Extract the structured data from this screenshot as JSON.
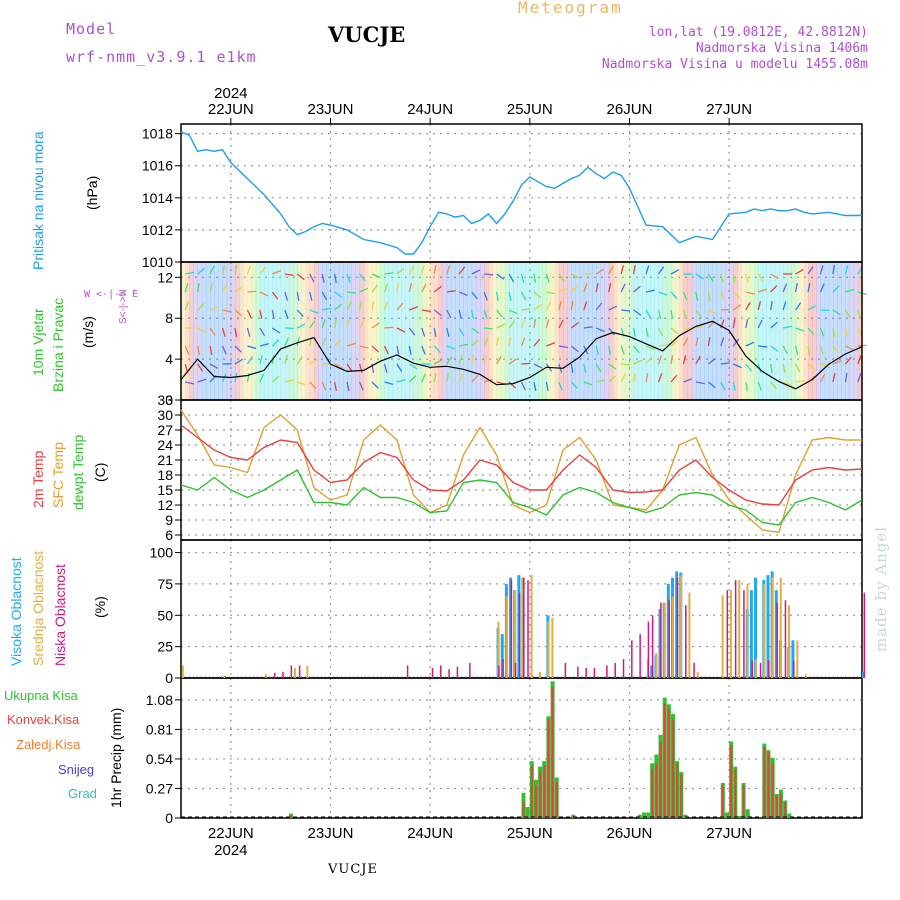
{
  "header": {
    "model_label": "Model",
    "model_run": "wrf-nmm_v3.9.1  e1km",
    "station": "VUCJE",
    "product": "Meteogram",
    "lonlat": "lon,lat (19.0812E, 42.8812N)",
    "elevation": "Nadmorska Visina 1406m",
    "model_elevation": "Nadmorska Visina u modelu 1455.08m",
    "footer_station": "VUCJE",
    "credit": "made by Angel"
  },
  "time_axis": {
    "year": "2024",
    "days": [
      "22JUN",
      "23JUN",
      "24JUN",
      "25JUN",
      "26JUN",
      "27JUN"
    ]
  },
  "colors": {
    "pressure": "#1e9ee8",
    "temp2m": "#e84040",
    "tempsfc": "#e0a030",
    "dewpt": "#30c030",
    "cloud_high": "#20a8f0",
    "cloud_mid": "#e0b040",
    "cloud_low": "#d01880",
    "precip_total": "#30c030",
    "precip_conv": "#e84040",
    "precip_frozen": "#f08030",
    "snow": "#4040e0",
    "graupel": "#30c0c0",
    "wind_label": "#30c030",
    "wind_dir": "#b050d0",
    "grid": "#999999"
  },
  "labels": {
    "pressure": {
      "name": "Pritisak na nivou mora",
      "unit": "(hPa)"
    },
    "wind": {
      "name1": "10m Vjetar",
      "name2": "Brzina i Pravac",
      "unit": "(m/s)",
      "dir_we": "W <-|-> E",
      "dir_sn": "S<-|->N"
    },
    "temp": {
      "l1": "2m Temp",
      "l2": "SFC Temp",
      "l3": "dewpt Temp",
      "unit": "(C)"
    },
    "cloud": {
      "l1": "Visoka Oblacnost",
      "l2": "Srednja Oblacnost",
      "l3": "Niska Oblacnost",
      "unit": "(%)"
    },
    "precip": {
      "l1": "Ukupna Kisa",
      "l2": "Konvek.Kisa",
      "l3": "Zaledj.Kisa",
      "l4": "Snijeg",
      "l5": "Grad",
      "unit": "1hr Precip (mm)"
    }
  },
  "chart_data": [
    {
      "type": "line",
      "name": "pressure",
      "x_hours": [
        0,
        2,
        4,
        6,
        8,
        10,
        12,
        16,
        20,
        24,
        26,
        28,
        30,
        32,
        34,
        36,
        40,
        44,
        48,
        52,
        54,
        56,
        58,
        60,
        62,
        64,
        66,
        68,
        70,
        72,
        74,
        76,
        78,
        80,
        82,
        84,
        86,
        88,
        90,
        92,
        94,
        96,
        98,
        100,
        102,
        104,
        106,
        108,
        112,
        116,
        120,
        124,
        128,
        132,
        136,
        138,
        140,
        142,
        144,
        146,
        148,
        150,
        152,
        156,
        160,
        164
      ],
      "values": [
        1018.1,
        1017.9,
        1016.9,
        1017.0,
        1016.9,
        1017.0,
        1016.2,
        1015.2,
        1014.2,
        1013.0,
        1012.2,
        1011.7,
        1011.9,
        1012.2,
        1012.4,
        1012.3,
        1012.0,
        1011.4,
        1011.2,
        1010.9,
        1010.5,
        1010.5,
        1011.2,
        1012.2,
        1013.1,
        1013.0,
        1012.8,
        1012.9,
        1012.4,
        1012.6,
        1013.0,
        1012.4,
        1013.0,
        1013.8,
        1014.8,
        1015.3,
        1015.0,
        1014.7,
        1014.6,
        1014.9,
        1015.2,
        1015.4,
        1015.9,
        1015.5,
        1015.2,
        1015.6,
        1015.4,
        1014.6,
        1012.3,
        1012.2,
        1011.2,
        1011.6,
        1011.4,
        1013.0,
        1013.1,
        1013.3,
        1013.2,
        1013.3,
        1013.2,
        1013.2,
        1013.3,
        1013.1,
        1013.0,
        1013.1,
        1012.9,
        1012.9
      ],
      "ylim": [
        1010,
        1018.6
      ],
      "yticks": [
        1010,
        1012,
        1014,
        1016,
        1018
      ]
    },
    {
      "type": "line",
      "name": "wind_speed",
      "x_hours": [
        0,
        4,
        8,
        12,
        16,
        20,
        24,
        28,
        32,
        36,
        40,
        44,
        48,
        52,
        56,
        60,
        64,
        68,
        72,
        76,
        80,
        84,
        88,
        92,
        96,
        100,
        104,
        108,
        112,
        116,
        120,
        124,
        128,
        132,
        136,
        140,
        144,
        148,
        152,
        156,
        160,
        164
      ],
      "series": [
        {
          "name": "Brzina",
          "values": [
            2.0,
            4.0,
            2.3,
            2.2,
            2.4,
            2.9,
            5.0,
            5.6,
            6.1,
            3.5,
            2.8,
            2.9,
            3.8,
            4.4,
            3.6,
            3.2,
            3.3,
            3.0,
            2.5,
            1.5,
            1.6,
            2.2,
            3.2,
            3.1,
            4.2,
            6.0,
            6.6,
            6.2,
            5.5,
            4.8,
            6.3,
            7.2,
            7.7,
            6.8,
            4.3,
            2.8,
            1.8,
            1.1,
            2.0,
            3.5,
            4.5,
            5.2
          ]
        }
      ],
      "ylim": [
        0,
        13.5
      ],
      "yticks": [
        0,
        4,
        8,
        12
      ]
    },
    {
      "type": "line",
      "name": "temperature",
      "x_hours": [
        0,
        4,
        8,
        12,
        16,
        20,
        24,
        28,
        32,
        36,
        40,
        44,
        48,
        52,
        56,
        60,
        64,
        68,
        72,
        76,
        80,
        84,
        88,
        92,
        96,
        100,
        104,
        108,
        112,
        116,
        120,
        124,
        128,
        132,
        136,
        140,
        144,
        148,
        152,
        156,
        160,
        164
      ],
      "series": [
        {
          "name": "2m Temp",
          "values": [
            28.0,
            25.5,
            23.0,
            21.5,
            21.0,
            23.5,
            25.0,
            24.5,
            19.0,
            16.5,
            17.0,
            20.5,
            22.5,
            21.5,
            17.0,
            15.0,
            14.8,
            17.0,
            21.0,
            20.0,
            16.5,
            15.0,
            15.0,
            19.0,
            22.0,
            19.5,
            15.0,
            14.5,
            14.6,
            15.0,
            19.0,
            21.0,
            17.5,
            15.0,
            13.0,
            12.2,
            12.0,
            17.0,
            19.0,
            19.5,
            19.0,
            19.2
          ]
        },
        {
          "name": "SFC Temp",
          "values": [
            31.0,
            26.0,
            20.0,
            19.5,
            18.5,
            27.5,
            30.0,
            27.0,
            15.5,
            13.0,
            14.0,
            25.0,
            28.0,
            25.0,
            14.0,
            10.5,
            12.0,
            22.0,
            27.5,
            22.0,
            12.0,
            10.5,
            12.0,
            23.0,
            25.5,
            21.0,
            12.0,
            11.5,
            11.0,
            15.0,
            24.0,
            25.5,
            18.0,
            13.0,
            10.0,
            7.0,
            6.5,
            18.0,
            25.0,
            25.5,
            25.0,
            25.0
          ]
        },
        {
          "name": "dewpt Temp",
          "values": [
            16.0,
            15.0,
            17.5,
            15.0,
            13.5,
            15.0,
            17.0,
            19.0,
            12.5,
            12.5,
            12.0,
            15.5,
            13.5,
            13.5,
            12.5,
            10.5,
            10.8,
            16.5,
            17.0,
            16.5,
            12.5,
            11.5,
            10.0,
            14.0,
            15.5,
            14.5,
            12.5,
            11.5,
            10.5,
            11.5,
            14.0,
            14.5,
            14.0,
            12.0,
            11.0,
            8.5,
            8.0,
            12.5,
            13.5,
            12.5,
            11.0,
            13.0
          ]
        }
      ],
      "ylim": [
        5,
        33
      ],
      "yticks": [
        6,
        9,
        12,
        15,
        18,
        21,
        24,
        27,
        30,
        33
      ]
    },
    {
      "type": "bar",
      "name": "cloud_cover",
      "series": [
        {
          "name": "Visoka Oblacnost",
          "x_hours": [
            76,
            77,
            78,
            79,
            80,
            81,
            82,
            88,
            113,
            114,
            115,
            116,
            117,
            118,
            119,
            120,
            136,
            137,
            138,
            140,
            141,
            142,
            143,
            144,
            146,
            147,
            164
          ],
          "values": [
            40,
            35,
            75,
            80,
            70,
            82,
            80,
            50,
            10,
            18,
            55,
            60,
            75,
            80,
            85,
            84,
            55,
            70,
            80,
            78,
            82,
            85,
            70,
            30,
            25,
            30,
            5
          ]
        },
        {
          "name": "Srednja Oblacnost",
          "x_hours": [
            0,
            10,
            20,
            27,
            30,
            76,
            78,
            80,
            82,
            84,
            86,
            88,
            89,
            112,
            114,
            116,
            118,
            120,
            122,
            124,
            130,
            132,
            134,
            136,
            138,
            140,
            142,
            144,
            146,
            148,
            150
          ],
          "values": [
            10,
            2,
            3,
            8,
            10,
            45,
            65,
            70,
            80,
            82,
            5,
            45,
            48,
            15,
            20,
            60,
            65,
            82,
            68,
            5,
            66,
            70,
            78,
            75,
            15,
            75,
            80,
            80,
            58,
            30,
            3
          ]
        },
        {
          "name": "Niska Oblacnost",
          "x_hours": [
            22,
            24,
            26,
            28,
            54,
            60,
            62,
            64,
            66,
            69,
            76,
            77,
            79,
            80,
            81,
            82,
            83,
            92,
            95,
            97,
            99,
            102,
            104,
            106,
            108,
            110,
            112,
            113,
            115,
            117,
            119,
            121,
            123,
            131,
            133,
            135,
            137,
            139,
            141,
            143,
            145,
            147,
            164
          ],
          "values": [
            4,
            5,
            10,
            10,
            10,
            8,
            10,
            7,
            9,
            12,
            10,
            15,
            78,
            12,
            68,
            80,
            78,
            12,
            9,
            8,
            8,
            10,
            12,
            15,
            30,
            35,
            45,
            50,
            60,
            62,
            80,
            58,
            12,
            70,
            78,
            70,
            14,
            12,
            14,
            60,
            62,
            14,
            68
          ]
        }
      ],
      "ylim": [
        0,
        110
      ],
      "yticks": [
        0,
        25,
        50,
        75,
        100
      ]
    },
    {
      "type": "bar",
      "name": "precipitation",
      "series": [
        {
          "name": "Ukupna Kisa",
          "x_hours": [
            26,
            82,
            83,
            84,
            85,
            86,
            87,
            88,
            89,
            90,
            94,
            110,
            111,
            112,
            113,
            114,
            115,
            116,
            117,
            118,
            119,
            120,
            121,
            130,
            131,
            132,
            133,
            134,
            135,
            136,
            140,
            141,
            142,
            143,
            144,
            145,
            146
          ],
          "values": [
            0.04,
            0.23,
            0.1,
            0.52,
            0.35,
            0.47,
            0.52,
            0.93,
            1.25,
            0.37,
            0.03,
            0.03,
            0.05,
            0.05,
            0.5,
            0.58,
            0.76,
            1.1,
            1.04,
            0.95,
            0.52,
            0.42,
            0.03,
            0.32,
            0.05,
            0.7,
            0.47,
            0.02,
            0.32,
            0.08,
            0.68,
            0.62,
            0.55,
            0.22,
            0.26,
            0.16,
            0.04
          ]
        },
        {
          "name": "Konvek.Kisa",
          "x_hours": [
            26,
            82,
            84,
            85,
            86,
            87,
            88,
            89,
            90,
            94,
            113,
            114,
            115,
            116,
            117,
            118,
            119,
            120,
            130,
            132,
            133,
            135,
            140,
            141,
            142,
            143,
            144,
            145
          ],
          "values": [
            0.03,
            0.15,
            0.48,
            0.3,
            0.42,
            0.48,
            0.9,
            1.2,
            0.33,
            0.02,
            0.45,
            0.5,
            0.7,
            1.05,
            1.0,
            0.9,
            0.5,
            0.4,
            0.3,
            0.66,
            0.44,
            0.3,
            0.65,
            0.6,
            0.5,
            0.2,
            0.22,
            0.14
          ]
        }
      ],
      "ylim": [
        0,
        1.28
      ],
      "yticks": [
        0,
        0.27,
        0.54,
        0.81,
        1.08
      ]
    }
  ]
}
